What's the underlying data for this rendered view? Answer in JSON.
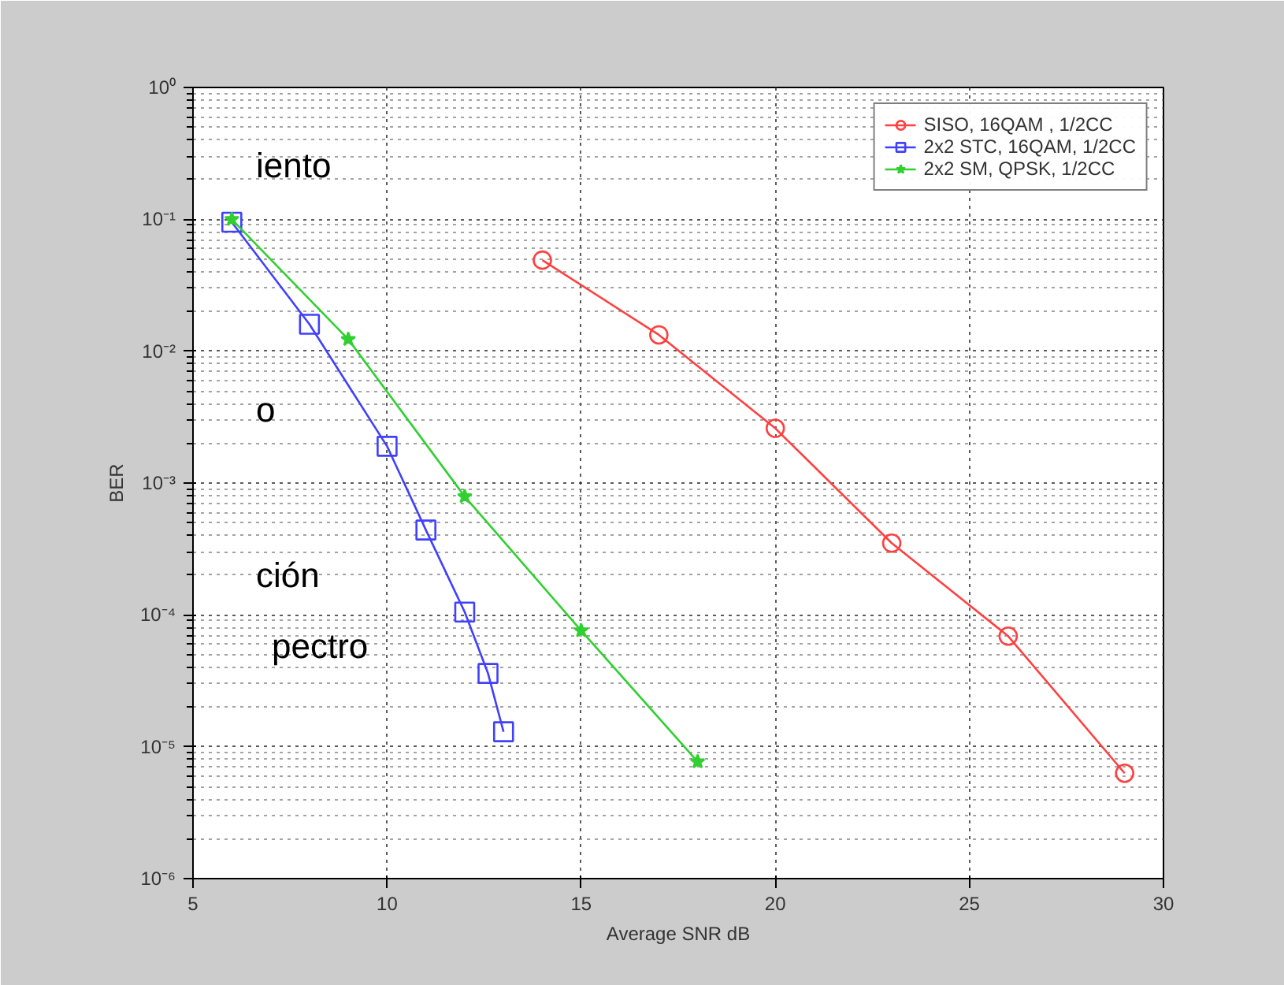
{
  "chart_data": {
    "type": "line",
    "xlabel": "Average SNR dB",
    "ylabel": "BER",
    "log": "y",
    "xlim": [
      5,
      30
    ],
    "xticks": [
      5,
      10,
      15,
      20,
      25,
      30
    ],
    "ylim": [
      1e-06,
      1
    ],
    "yticks": [
      {
        "value": 1e-06,
        "label": "10⁻⁶"
      },
      {
        "value": 1e-05,
        "label": "10⁻⁵"
      },
      {
        "value": 0.0001,
        "label": "10⁻⁴"
      },
      {
        "value": 0.001,
        "label": "10⁻³"
      },
      {
        "value": 0.01,
        "label": "10⁻²"
      },
      {
        "value": 0.1,
        "label": "10⁻¹"
      },
      {
        "value": 1,
        "label": "10⁰"
      }
    ],
    "grid": true,
    "legend": "top right",
    "series": [
      {
        "name": "SISO, 16QAM , 1/2CC",
        "color": "#ff4040",
        "marker": "circle",
        "x": [
          14,
          17,
          20,
          23,
          26,
          29
        ],
        "values": [
          0.049,
          0.0133,
          0.0026,
          0.00035,
          6.9e-05,
          6.3e-06
        ]
      },
      {
        "name": "2x2 STC, 16QAM, 1/2CC",
        "color": "#4040ff",
        "marker": "square",
        "x": [
          6,
          8,
          10,
          11,
          12,
          12.6,
          13
        ],
        "values": [
          0.095,
          0.016,
          0.0019,
          0.00044,
          0.000105,
          3.6e-05,
          1.3e-05
        ]
      },
      {
        "name": "2x2 SM, QPSK, 1/2CC",
        "color": "#30d030",
        "marker": "star",
        "x": [
          6,
          9,
          12,
          15,
          18
        ],
        "values": [
          0.1,
          0.0123,
          0.00079,
          7.6e-05,
          7.7e-06
        ]
      }
    ],
    "annotations": [
      "iento",
      "o",
      "ción",
      "pectro"
    ]
  }
}
